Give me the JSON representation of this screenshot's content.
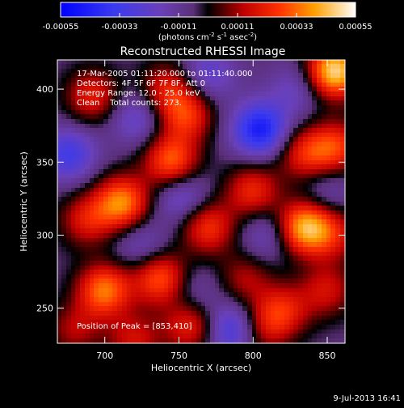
{
  "chart_data": {
    "type": "heatmap",
    "title": "Reconstructed RHESSI Image",
    "xlabel": "Heliocentric X (arcsec)",
    "ylabel": "Heliocentric Y (arcsec)",
    "xlim": [
      668,
      862
    ],
    "ylim": [
      226,
      420
    ],
    "x_ticks": [
      700,
      750,
      800,
      850
    ],
    "y_ticks": [
      250,
      300,
      350,
      400
    ],
    "colorbar": {
      "range": [
        -0.00055,
        0.00055
      ],
      "ticks": [
        "-0.00055",
        "-0.00033",
        "-0.00011",
        "0.00011",
        "0.00033",
        "0.00055"
      ],
      "unit_parts": [
        "(photons cm",
        "-2",
        " s",
        "-1",
        " asec",
        "-2",
        ")"
      ]
    },
    "annotations": [
      "17-Mar-2005 01:11:20.000 to 01:11:40.000",
      "Detectors: 4F 5F 6F 7F 8F, Att 0",
      "Energy Range: 12.0 - 25.0 keV",
      "Clean    Total counts: 273."
    ],
    "peak_label": "Position of Peak = [853,410]",
    "blobs": [
      {
        "x": 855,
        "y": 412,
        "v": 0.00055
      },
      {
        "x": 835,
        "y": 305,
        "v": 0.00048
      },
      {
        "x": 712,
        "y": 322,
        "v": 0.00042
      },
      {
        "x": 700,
        "y": 262,
        "v": 0.0004
      },
      {
        "x": 745,
        "y": 350,
        "v": 0.00038
      },
      {
        "x": 738,
        "y": 270,
        "v": 0.00036
      },
      {
        "x": 755,
        "y": 382,
        "v": 0.0003
      },
      {
        "x": 692,
        "y": 395,
        "v": 0.00026
      },
      {
        "x": 742,
        "y": 400,
        "v": 0.00024
      },
      {
        "x": 770,
        "y": 305,
        "v": 0.0003
      },
      {
        "x": 800,
        "y": 330,
        "v": 0.00028
      },
      {
        "x": 758,
        "y": 238,
        "v": 0.00028
      },
      {
        "x": 835,
        "y": 355,
        "v": 0.00026
      },
      {
        "x": 820,
        "y": 248,
        "v": 0.00026
      },
      {
        "x": 856,
        "y": 360,
        "v": 0.0003
      },
      {
        "x": 688,
        "y": 310,
        "v": 0.00024
      },
      {
        "x": 720,
        "y": 228,
        "v": 0.00022
      },
      {
        "x": 850,
        "y": 262,
        "v": 0.00022
      },
      {
        "x": 855,
        "y": 300,
        "v": 0.0002
      },
      {
        "x": 795,
        "y": 270,
        "v": 0.00018
      },
      {
        "x": 805,
        "y": 235,
        "v": 0.0002
      },
      {
        "x": 680,
        "y": 235,
        "v": 0.00018
      },
      {
        "x": 805,
        "y": 372,
        "v": -0.0004
      },
      {
        "x": 787,
        "y": 235,
        "v": -0.0003
      },
      {
        "x": 676,
        "y": 355,
        "v": -0.00026
      },
      {
        "x": 752,
        "y": 327,
        "v": -0.0002
      },
      {
        "x": 722,
        "y": 380,
        "v": -0.00018
      },
      {
        "x": 770,
        "y": 410,
        "v": -0.00018
      },
      {
        "x": 810,
        "y": 300,
        "v": -0.00015
      },
      {
        "x": 725,
        "y": 293,
        "v": -0.00014
      },
      {
        "x": 760,
        "y": 260,
        "v": -0.00012
      },
      {
        "x": 850,
        "y": 330,
        "v": -0.00012
      },
      {
        "x": 830,
        "y": 400,
        "v": -0.00014
      }
    ]
  },
  "footer": {
    "date": "9-Jul-2013 16:41"
  }
}
